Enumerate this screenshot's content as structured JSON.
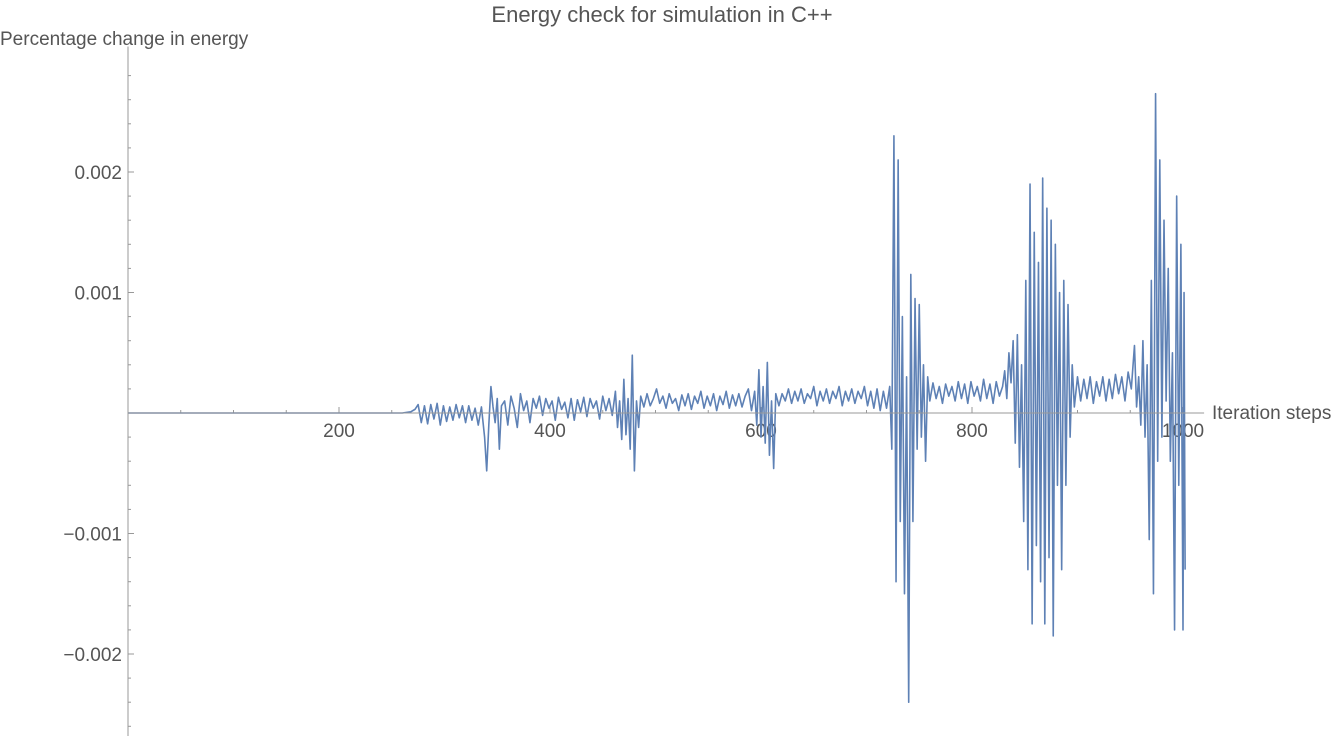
{
  "chart_data": {
    "type": "line",
    "title": "Energy check for simulation in C++",
    "xlabel": "Iteration steps",
    "ylabel": "Percentage change in energy",
    "xlim": [
      0,
      1020
    ],
    "ylim": [
      -0.0027,
      0.003
    ],
    "grid": false,
    "x_ticks": [
      200,
      400,
      600,
      800,
      1000
    ],
    "x_tick_labels": [
      "200",
      "400",
      "600",
      "800",
      "1000"
    ],
    "y_ticks": [
      0.002,
      0.001,
      -0.001,
      -0.002
    ],
    "y_tick_labels": [
      "0.002",
      "0.001",
      "−0.001",
      "−0.002"
    ],
    "series": [
      {
        "color": "#5e81b5",
        "points": [
          [
            0,
            0
          ],
          [
            100,
            0
          ],
          [
            200,
            0
          ],
          [
            260,
            0
          ],
          [
            268,
            1e-05
          ],
          [
            272,
            3e-05
          ],
          [
            275,
            7e-05
          ],
          [
            278,
            -8e-05
          ],
          [
            281,
            6e-05
          ],
          [
            284,
            -9e-05
          ],
          [
            287,
            7e-05
          ],
          [
            290,
            -5e-05
          ],
          [
            293,
            8e-05
          ],
          [
            296,
            -0.0001
          ],
          [
            299,
            6e-05
          ],
          [
            302,
            -7e-05
          ],
          [
            305,
            5e-05
          ],
          [
            308,
            -6e-05
          ],
          [
            311,
            7e-05
          ],
          [
            314,
            -4e-05
          ],
          [
            317,
            6e-05
          ],
          [
            320,
            -8e-05
          ],
          [
            323,
            6e-05
          ],
          [
            326,
            -6e-05
          ],
          [
            329,
            4e-05
          ],
          [
            332,
            -0.0001
          ],
          [
            335,
            5e-05
          ],
          [
            338,
            -0.0002
          ],
          [
            340,
            -0.00048
          ],
          [
            342,
            -0.0001
          ],
          [
            344,
            0.00022
          ],
          [
            346,
            5e-05
          ],
          [
            348,
            -8e-05
          ],
          [
            350,
            0.00012
          ],
          [
            352,
            -0.0003
          ],
          [
            354,
            6e-05
          ],
          [
            357,
            0.0001
          ],
          [
            360,
            -0.0001
          ],
          [
            363,
            0.00014
          ],
          [
            366,
            4e-05
          ],
          [
            369,
            -0.00012
          ],
          [
            372,
            0.00016
          ],
          [
            375,
            2e-05
          ],
          [
            378,
            0.0001
          ],
          [
            381,
            -8e-05
          ],
          [
            384,
            0.00012
          ],
          [
            387,
            4e-05
          ],
          [
            390,
            0.00014
          ],
          [
            393,
            -2e-05
          ],
          [
            396,
            0.00012
          ],
          [
            399,
            4e-05
          ],
          [
            402,
            0.0001
          ],
          [
            405,
            -6e-05
          ],
          [
            408,
            0.00013
          ],
          [
            411,
            3e-05
          ],
          [
            414,
            9e-05
          ],
          [
            417,
            -4e-05
          ],
          [
            420,
            0.00012
          ],
          [
            423,
            -6e-05
          ],
          [
            426,
            0.00011
          ],
          [
            429,
            1e-05
          ],
          [
            432,
            0.00013
          ],
          [
            435,
            -3e-05
          ],
          [
            438,
            0.00012
          ],
          [
            441,
            4e-05
          ],
          [
            444,
            0.0001
          ],
          [
            447,
            -5e-05
          ],
          [
            450,
            0.00014
          ],
          [
            453,
            2e-05
          ],
          [
            456,
            0.00012
          ],
          [
            459,
            -2e-05
          ],
          [
            462,
            0.00018
          ],
          [
            464,
            -0.00012
          ],
          [
            466,
            0.0001
          ],
          [
            468,
            -0.00022
          ],
          [
            470,
            0.00028
          ],
          [
            472,
            -0.00018
          ],
          [
            474,
            0.00012
          ],
          [
            476,
            -0.0003
          ],
          [
            478,
            0.00048
          ],
          [
            480,
            -0.00048
          ],
          [
            482,
            0.0001
          ],
          [
            484,
            -0.00012
          ],
          [
            486,
            0.00014
          ],
          [
            489,
            5e-05
          ],
          [
            492,
            0.00016
          ],
          [
            495,
            6e-05
          ],
          [
            498,
            0.00012
          ],
          [
            501,
            0.0002
          ],
          [
            504,
            8e-05
          ],
          [
            507,
            0.00014
          ],
          [
            510,
            4e-05
          ],
          [
            513,
            0.00016
          ],
          [
            516,
            8e-05
          ],
          [
            519,
            0.00012
          ],
          [
            522,
            2e-05
          ],
          [
            525,
            0.00015
          ],
          [
            528,
            6e-05
          ],
          [
            531,
            0.00016
          ],
          [
            534,
            3e-05
          ],
          [
            537,
            0.00014
          ],
          [
            540,
            8e-05
          ],
          [
            543,
            0.00018
          ],
          [
            546,
            4e-05
          ],
          [
            549,
            0.00014
          ],
          [
            552,
            6e-05
          ],
          [
            555,
            0.00016
          ],
          [
            558,
            2e-05
          ],
          [
            561,
            0.00014
          ],
          [
            564,
            7e-05
          ],
          [
            567,
            0.00018
          ],
          [
            570,
            4e-05
          ],
          [
            573,
            0.00015
          ],
          [
            576,
            6e-05
          ],
          [
            579,
            0.00016
          ],
          [
            582,
            5e-05
          ],
          [
            585,
            0.00014
          ],
          [
            588,
            0.0002
          ],
          [
            591,
            2e-05
          ],
          [
            594,
            0.00018
          ],
          [
            596,
            -0.0001
          ],
          [
            598,
            0.00036
          ],
          [
            600,
            -0.0002
          ],
          [
            602,
            0.00022
          ],
          [
            604,
            -0.00025
          ],
          [
            606,
            0.00042
          ],
          [
            608,
            -0.00035
          ],
          [
            610,
            0.0001
          ],
          [
            612,
            -0.00046
          ],
          [
            614,
            0.00016
          ],
          [
            617,
            6e-05
          ],
          [
            620,
            0.00016
          ],
          [
            623,
            0.0001
          ],
          [
            626,
            0.0002
          ],
          [
            629,
            8e-05
          ],
          [
            632,
            0.00018
          ],
          [
            635,
            0.0001
          ],
          [
            638,
            0.0002
          ],
          [
            641,
            8e-05
          ],
          [
            644,
            0.00016
          ],
          [
            647,
            0.00012
          ],
          [
            650,
            0.00022
          ],
          [
            653,
            6e-05
          ],
          [
            656,
            0.00018
          ],
          [
            659,
            0.0001
          ],
          [
            662,
            0.0002
          ],
          [
            665,
            8e-05
          ],
          [
            668,
            0.00018
          ],
          [
            671,
            0.00012
          ],
          [
            674,
            0.00022
          ],
          [
            677,
            6e-05
          ],
          [
            680,
            0.00018
          ],
          [
            683,
            0.0001
          ],
          [
            686,
            0.0002
          ],
          [
            689,
            8e-05
          ],
          [
            692,
            0.00018
          ],
          [
            695,
            0.00012
          ],
          [
            698,
            0.00022
          ],
          [
            701,
            6e-05
          ],
          [
            704,
            0.00018
          ],
          [
            707,
            4e-05
          ],
          [
            710,
            0.0002
          ],
          [
            713,
            2e-05
          ],
          [
            716,
            0.00018
          ],
          [
            719,
            4e-05
          ],
          [
            722,
            0.00022
          ],
          [
            724,
            -0.0003
          ],
          [
            726,
            0.0023
          ],
          [
            728,
            -0.0014
          ],
          [
            730,
            0.0021
          ],
          [
            732,
            -0.0009
          ],
          [
            734,
            0.0008
          ],
          [
            736,
            -0.0015
          ],
          [
            738,
            0.0003
          ],
          [
            740,
            -0.0024
          ],
          [
            742,
            0.00115
          ],
          [
            744,
            -0.0009
          ],
          [
            746,
            0.00095
          ],
          [
            748,
            -0.0003
          ],
          [
            750,
            0.0009
          ],
          [
            752,
            -0.0002
          ],
          [
            754,
            0.0004
          ],
          [
            756,
            -0.0004
          ],
          [
            758,
            0.0003
          ],
          [
            760,
            0.0001
          ],
          [
            763,
            0.00025
          ],
          [
            766,
            0.00012
          ],
          [
            769,
            0.00022
          ],
          [
            772,
            8e-05
          ],
          [
            775,
            0.00024
          ],
          [
            778,
            0.00014
          ],
          [
            781,
            0.00022
          ],
          [
            784,
            0.0001
          ],
          [
            787,
            0.00026
          ],
          [
            790,
            0.00012
          ],
          [
            793,
            0.00024
          ],
          [
            796,
            8e-05
          ],
          [
            799,
            0.00026
          ],
          [
            802,
            0.00014
          ],
          [
            805,
            0.00022
          ],
          [
            808,
            0.0001
          ],
          [
            811,
            0.00028
          ],
          [
            814,
            0.00012
          ],
          [
            817,
            0.00024
          ],
          [
            820,
            8e-05
          ],
          [
            823,
            0.00026
          ],
          [
            826,
            0.00014
          ],
          [
            829,
            0.00022
          ],
          [
            831,
            0.00035
          ],
          [
            833,
            0.00012
          ],
          [
            835,
            0.0005
          ],
          [
            837,
            0.00025
          ],
          [
            839,
            0.0006
          ],
          [
            841,
            -0.00025
          ],
          [
            843,
            0.00065
          ],
          [
            845,
            -0.00045
          ],
          [
            847,
            0.0004
          ],
          [
            849,
            -0.0009
          ],
          [
            851,
            0.0011
          ],
          [
            853,
            -0.0013
          ],
          [
            855,
            0.0019
          ],
          [
            857,
            -0.00175
          ],
          [
            859,
            0.0015
          ],
          [
            861,
            -0.0011
          ],
          [
            863,
            0.00125
          ],
          [
            865,
            -0.0014
          ],
          [
            867,
            0.00195
          ],
          [
            869,
            -0.00175
          ],
          [
            871,
            0.0017
          ],
          [
            873,
            -0.0012
          ],
          [
            875,
            0.0016
          ],
          [
            877,
            -0.00185
          ],
          [
            879,
            0.0014
          ],
          [
            881,
            -0.0006
          ],
          [
            883,
            0.001
          ],
          [
            885,
            -0.0013
          ],
          [
            887,
            0.0011
          ],
          [
            889,
            -0.0006
          ],
          [
            891,
            0.0009
          ],
          [
            893,
            -0.0002
          ],
          [
            895,
            0.0004
          ],
          [
            897,
            5e-05
          ],
          [
            900,
            0.0003
          ],
          [
            903,
            0.0001
          ],
          [
            906,
            0.00028
          ],
          [
            909,
            0.00012
          ],
          [
            912,
            0.0003
          ],
          [
            915,
            8e-05
          ],
          [
            918,
            0.00026
          ],
          [
            921,
            0.00014
          ],
          [
            924,
            0.0003
          ],
          [
            927,
            0.0001
          ],
          [
            930,
            0.00028
          ],
          [
            933,
            0.00012
          ],
          [
            936,
            0.00032
          ],
          [
            939,
            0.00016
          ],
          [
            942,
            0.0003
          ],
          [
            945,
            0.0001
          ],
          [
            948,
            0.00034
          ],
          [
            951,
            0.0002
          ],
          [
            954,
            0.00056
          ],
          [
            956,
            5e-05
          ],
          [
            958,
            0.0003
          ],
          [
            960,
            -0.0001
          ],
          [
            962,
            0.0006
          ],
          [
            964,
            -0.0002
          ],
          [
            966,
            0.0004
          ],
          [
            968,
            -0.00105
          ],
          [
            970,
            0.0011
          ],
          [
            972,
            -0.0015
          ],
          [
            974,
            0.00265
          ],
          [
            976,
            -0.0004
          ],
          [
            978,
            0.0021
          ],
          [
            980,
            -0.0002
          ],
          [
            982,
            0.0016
          ],
          [
            984,
            0.0001
          ],
          [
            986,
            0.0012
          ],
          [
            988,
            -0.0004
          ],
          [
            990,
            0.0005
          ],
          [
            992,
            -0.0018
          ],
          [
            994,
            0.0018
          ],
          [
            996,
            -0.0006
          ],
          [
            998,
            0.0014
          ],
          [
            1000,
            -0.0018
          ],
          [
            1001,
            0.001
          ],
          [
            1002,
            -0.0013
          ]
        ]
      }
    ]
  }
}
